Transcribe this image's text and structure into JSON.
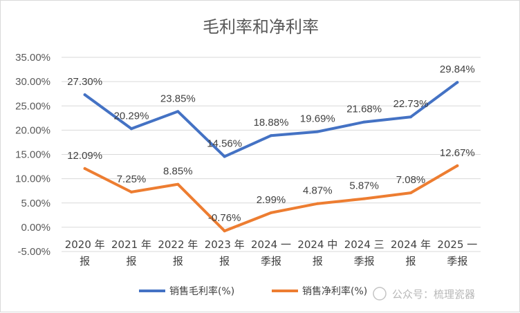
{
  "chart_data": {
    "type": "line",
    "title": "毛利率和净利率",
    "categories": [
      "2020年报",
      "2021年报",
      "2022年报",
      "2023年报",
      "2024一季报",
      "2024中报",
      "2024三季报",
      "2024年报",
      "2025一季报"
    ],
    "category_lines": [
      [
        "2020 年",
        "报"
      ],
      [
        "2021 年",
        "报"
      ],
      [
        "2022 年",
        "报"
      ],
      [
        "2023 年",
        "报"
      ],
      [
        "2024 一",
        "季报"
      ],
      [
        "2024 中",
        "报"
      ],
      [
        "2024 三",
        "季报"
      ],
      [
        "2024 年",
        "报"
      ],
      [
        "2025 一",
        "季报"
      ]
    ],
    "series": [
      {
        "name": "销售毛利率(%)",
        "color": "#4472c4",
        "values": [
          27.3,
          20.29,
          23.85,
          14.56,
          18.88,
          19.69,
          21.68,
          22.73,
          29.84
        ],
        "labels": [
          "27.30%",
          "20.29%",
          "23.85%",
          "14.56%",
          "18.88%",
          "19.69%",
          "21.68%",
          "22.73%",
          "29.84%"
        ]
      },
      {
        "name": "销售净利率(%)",
        "color": "#ed7d31",
        "values": [
          12.09,
          7.25,
          8.85,
          -0.76,
          2.99,
          4.87,
          5.87,
          7.08,
          12.67
        ],
        "labels": [
          "12.09%",
          "7.25%",
          "8.85%",
          "-0.76%",
          "2.99%",
          "4.87%",
          "5.87%",
          "7.08%",
          "12.67%"
        ]
      }
    ],
    "ylim": [
      -5,
      35
    ],
    "yticks": [
      35,
      30,
      25,
      20,
      15,
      10,
      5,
      0,
      -5
    ],
    "ytick_labels": [
      "35.00%",
      "30.00%",
      "25.00%",
      "20.00%",
      "15.00%",
      "10.00%",
      "5.00%",
      "0.00%",
      "-5.00%"
    ],
    "grid": true,
    "gridline_color": "#d9d9d9",
    "legend_position": "bottom"
  },
  "watermark": "公众号：梳理瓷器"
}
